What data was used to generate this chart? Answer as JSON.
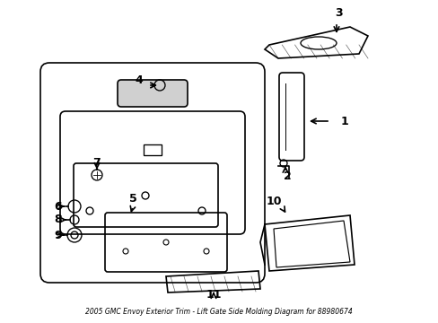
{
  "title": "2005 GMC Envoy Exterior Trim - Lift Gate Side Molding Diagram for 88980674",
  "bg_color": "#ffffff",
  "line_color": "#000000",
  "label_color": "#000000",
  "fig_width": 4.89,
  "fig_height": 3.6,
  "dpi": 100
}
